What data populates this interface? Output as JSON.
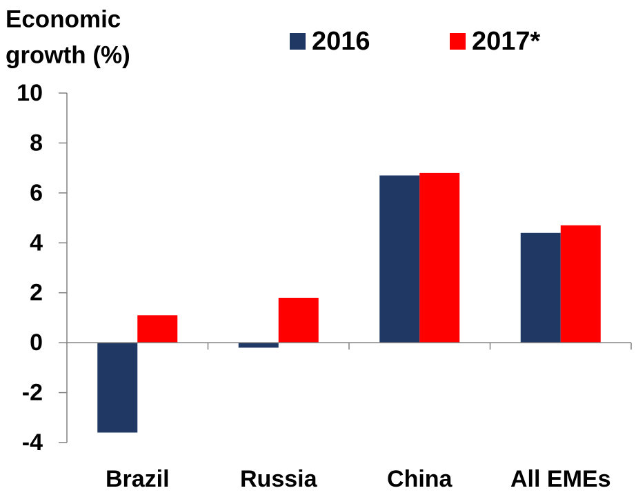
{
  "chart_data": {
    "type": "bar",
    "ylabel": [
      "Economic",
      "growth (%)"
    ],
    "categories": [
      "Brazil",
      "Russia",
      "China",
      "All EMEs"
    ],
    "series": [
      {
        "name": "2016",
        "color": "#1f3864",
        "values": [
          -3.6,
          -0.2,
          6.7,
          4.4
        ]
      },
      {
        "name": "2017*",
        "color": "#ff0000",
        "values": [
          1.1,
          1.8,
          6.8,
          4.7
        ]
      }
    ],
    "ylim": [
      -4,
      10
    ],
    "yticks": [
      -4,
      -2,
      0,
      2,
      4,
      6,
      8,
      10
    ],
    "grid": false,
    "legend": "top"
  }
}
